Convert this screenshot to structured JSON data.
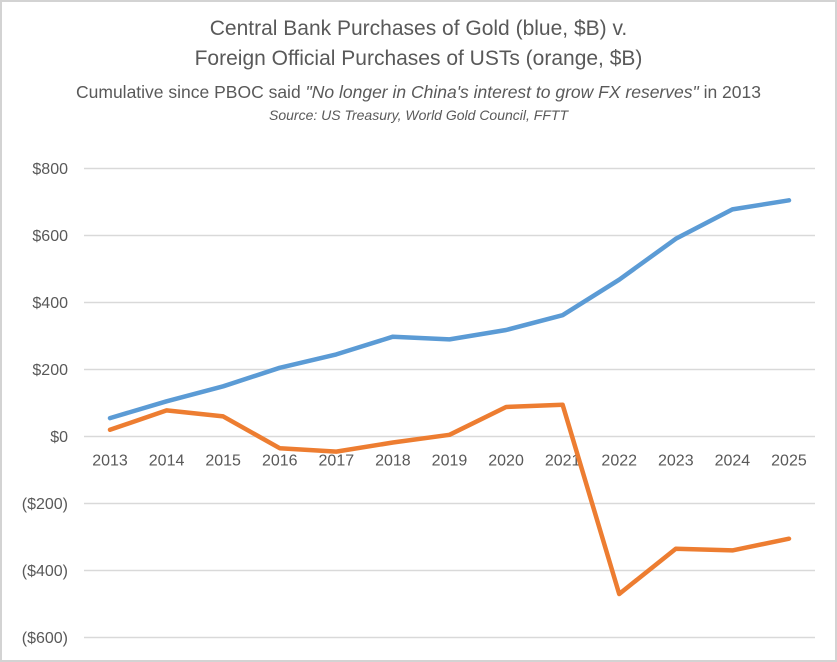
{
  "colors": {
    "gold_line": "#5B9BD5",
    "ust_line": "#ED7D31",
    "gridline": "#D9D9D9",
    "text": "#595959",
    "frame_border": "#D3D3D3",
    "background": "#FFFFFF"
  },
  "header": {
    "title_line1": "Central Bank Purchases of Gold (blue, $B) v.",
    "title_line2": "Foreign Official Purchases of USTs (orange, $B)",
    "subtitle_prefix": "Cumulative since PBOC said ",
    "subtitle_italic": "\"No longer in China's interest to grow FX reserves\"",
    "subtitle_suffix": " in 2013",
    "source_line": "Source: US Treasury, World Gold Council, FFTT"
  },
  "chart_data": {
    "type": "line",
    "title": "Central Bank Purchases of Gold (blue, $B) v. Foreign Official Purchases of USTs (orange, $B)",
    "subtitle": "Cumulative since PBOC said \"No longer in China's interest to grow FX reserves\" in 2013",
    "source": "Source: US Treasury, World Gold Council, FFTT",
    "x": [
      2013,
      2014,
      2015,
      2016,
      2017,
      2018,
      2019,
      2020,
      2021,
      2022,
      2023,
      2024,
      2025
    ],
    "series": [
      {
        "name": "Central Bank Purchases of Gold ($B, cumulative)",
        "color": "#5B9BD5",
        "values": [
          55,
          105,
          150,
          205,
          245,
          298,
          290,
          318,
          362,
          468,
          590,
          678,
          705
        ]
      },
      {
        "name": "Foreign Official Purchases of USTs ($B, cumulative)",
        "color": "#ED7D31",
        "values": [
          20,
          78,
          60,
          -35,
          -45,
          -18,
          5,
          88,
          95,
          -470,
          -335,
          -340,
          -305
        ]
      }
    ],
    "xlabel": "",
    "ylabel": "",
    "ylim": [
      -600,
      800
    ],
    "y_ticks": [
      {
        "value": 800,
        "label": "$800"
      },
      {
        "value": 600,
        "label": "$600"
      },
      {
        "value": 400,
        "label": "$400"
      },
      {
        "value": 200,
        "label": "$200"
      },
      {
        "value": 0,
        "label": "$0"
      },
      {
        "value": -200,
        "label": "($200)"
      },
      {
        "value": -400,
        "label": "($400)"
      },
      {
        "value": -600,
        "label": "($600)"
      }
    ],
    "grid": true,
    "legend": "none"
  }
}
